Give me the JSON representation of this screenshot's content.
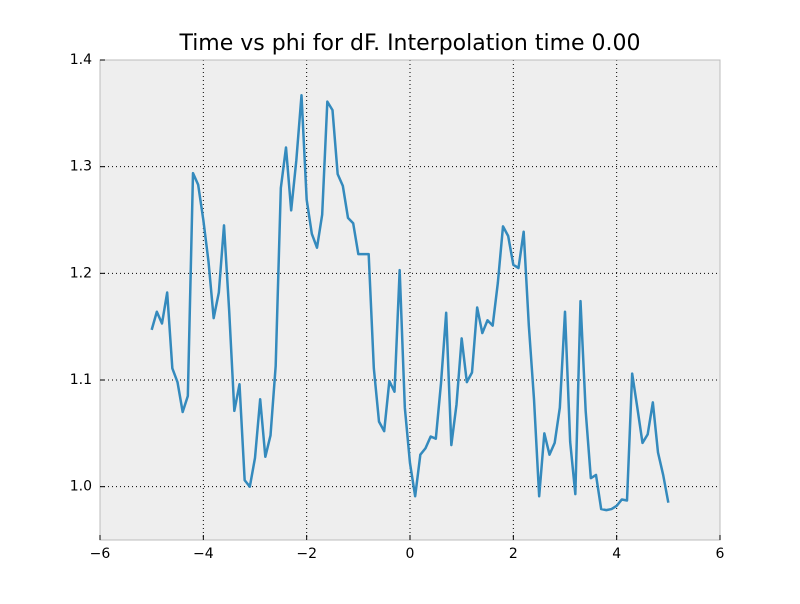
{
  "chart_data": {
    "type": "line",
    "title": "Time vs phi for dF. Interpolation time 0.00",
    "x": [
      -5.0,
      -4.9,
      -4.8,
      -4.7,
      -4.6,
      -4.5,
      -4.4,
      -4.3,
      -4.2,
      -4.1,
      -4.0,
      -3.9,
      -3.8,
      -3.7,
      -3.6,
      -3.5,
      -3.4,
      -3.3,
      -3.2,
      -3.1,
      -3.0,
      -2.9,
      -2.8,
      -2.7,
      -2.6,
      -2.5,
      -2.4,
      -2.3,
      -2.2,
      -2.1,
      -2.0,
      -1.9,
      -1.8,
      -1.7,
      -1.6,
      -1.5,
      -1.4,
      -1.3,
      -1.2,
      -1.1,
      -1.0,
      -0.9,
      -0.8,
      -0.7,
      -0.6,
      -0.5,
      -0.4,
      -0.3,
      -0.2,
      -0.1,
      0.0,
      0.1,
      0.2,
      0.3,
      0.4,
      0.5,
      0.6,
      0.7,
      0.8,
      0.9,
      1.0,
      1.1,
      1.2,
      1.3,
      1.4,
      1.5,
      1.6,
      1.7,
      1.8,
      1.9,
      2.0,
      2.1,
      2.2,
      2.3,
      2.4,
      2.5,
      2.6,
      2.7,
      2.8,
      2.9,
      3.0,
      3.1,
      3.2,
      3.3,
      3.4,
      3.5,
      3.6,
      3.7,
      3.8,
      3.9,
      4.0,
      4.1,
      4.2,
      4.3,
      4.4,
      4.5,
      4.6,
      4.7,
      4.8,
      4.9,
      5.0
    ],
    "series": [
      {
        "color": "#348abd",
        "values": [
          1.147,
          1.164,
          1.153,
          1.182,
          1.111,
          1.098,
          1.07,
          1.085,
          1.294,
          1.283,
          1.25,
          1.211,
          1.158,
          1.182,
          1.245,
          1.165,
          1.071,
          1.096,
          1.006,
          1.0,
          1.027,
          1.082,
          1.028,
          1.048,
          1.113,
          1.28,
          1.318,
          1.259,
          1.306,
          1.367,
          1.269,
          1.237,
          1.224,
          1.255,
          1.361,
          1.353,
          1.293,
          1.282,
          1.252,
          1.247,
          1.218,
          1.218,
          1.218,
          1.111,
          1.061,
          1.052,
          1.099,
          1.089,
          1.203,
          1.074,
          1.022,
          0.991,
          1.03,
          1.036,
          1.047,
          1.045,
          1.097,
          1.163,
          1.039,
          1.077,
          1.139,
          1.098,
          1.107,
          1.168,
          1.144,
          1.156,
          1.151,
          1.191,
          1.244,
          1.235,
          1.208,
          1.205,
          1.239,
          1.151,
          1.082,
          0.991,
          1.05,
          1.03,
          1.041,
          1.074,
          1.164,
          1.042,
          0.993,
          1.174,
          1.071,
          1.008,
          1.011,
          0.979,
          0.978,
          0.979,
          0.982,
          0.988,
          0.987,
          1.106,
          1.074,
          1.041,
          1.049,
          1.079,
          1.032,
          1.011,
          0.985
        ]
      }
    ],
    "xlim": [
      -6,
      6
    ],
    "xticks": [
      {
        "value": -6,
        "label": "−6"
      },
      {
        "value": -4,
        "label": "−4"
      },
      {
        "value": -2,
        "label": "−2"
      },
      0,
      2,
      4,
      6
    ],
    "ylim": [
      0.95,
      1.4
    ],
    "yticks": [
      {
        "value": 1,
        "label": "1.0"
      },
      1.1,
      1.2,
      1.3,
      1.4
    ],
    "grid": true,
    "background": "#eeeeee"
  }
}
